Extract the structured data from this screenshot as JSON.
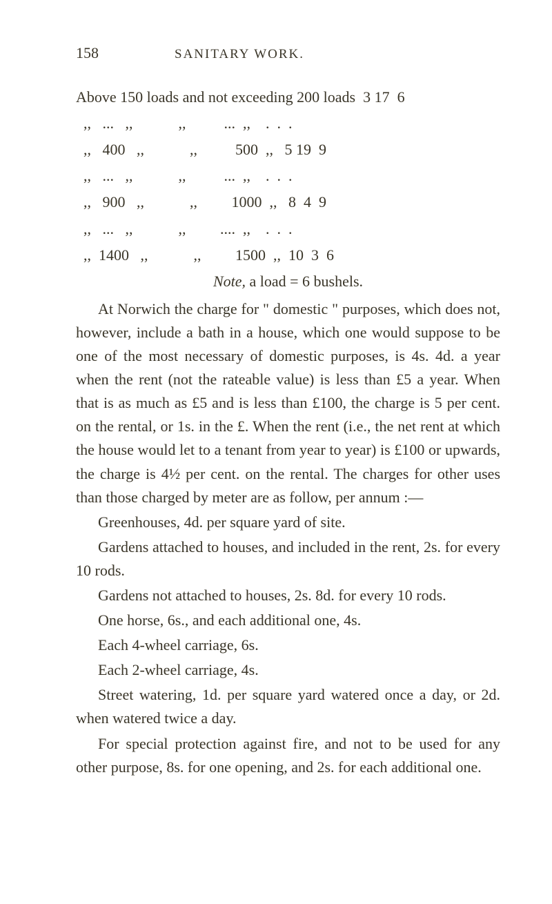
{
  "header": {
    "pageNum": "158",
    "title": "SANITARY WORK."
  },
  "table": {
    "row1": "Above 150 loads and not exceeding 200 loads  3 17  6",
    "row2": "  ,,   ...   ,,            ,,          ...  ,,    .  .  .",
    "row3": "  ,,   400   ,,            ,,          500  ,,   5 19  9",
    "row4": "  ,,   ...   ,,            ,,          ...  ,,    .  .  .",
    "row5": "  ,,   900   ,,            ,,         1000  ,,   8  4  9",
    "row6": "  ,,   ...   ,,            ,,         ....  ,,    .  .  .",
    "row7": "  ,,  1400   ,,            ,,         1500  ,,  10  3  6"
  },
  "noteLine": {
    "prefix": "Note,",
    "rest": " a load = 6 bushels."
  },
  "para1": "At Norwich the charge for \" domestic \" purposes, which does not, however, include a bath in a house, which one would suppose to be one of the most neces­sary of domestic purposes, is 4s. 4d. a year when the rent (not the rateable value) is less than £5 a year. When that is as much as £5 and is less than £100, the charge is 5 per cent. on the rental, or 1s. in the £. When the rent (i.e., the net rent at which the house would let to a tenant from year to year) is £100 or upwards, the charge is 4½ per cent. on the rental. The charges for other uses than those charged by meter are as follow, per annum :—",
  "line1": "Greenhouses, 4d. per square yard of site.",
  "line2": "Gardens attached to houses, and included in the rent, 2s. for every 10 rods.",
  "line3": "Gardens not attached to houses, 2s. 8d. for every 10 rods.",
  "line4": "One horse, 6s., and each additional one, 4s.",
  "line5": "Each 4-wheel carriage, 6s.",
  "line6": "Each 2-wheel carriage, 4s.",
  "line7": "Street watering, 1d. per square yard watered once a day, or 2d. when watered twice a day.",
  "line8": "For special protection against fire, and not to be used for any other purpose, 8s. for one opening, and 2s. for each additional one."
}
